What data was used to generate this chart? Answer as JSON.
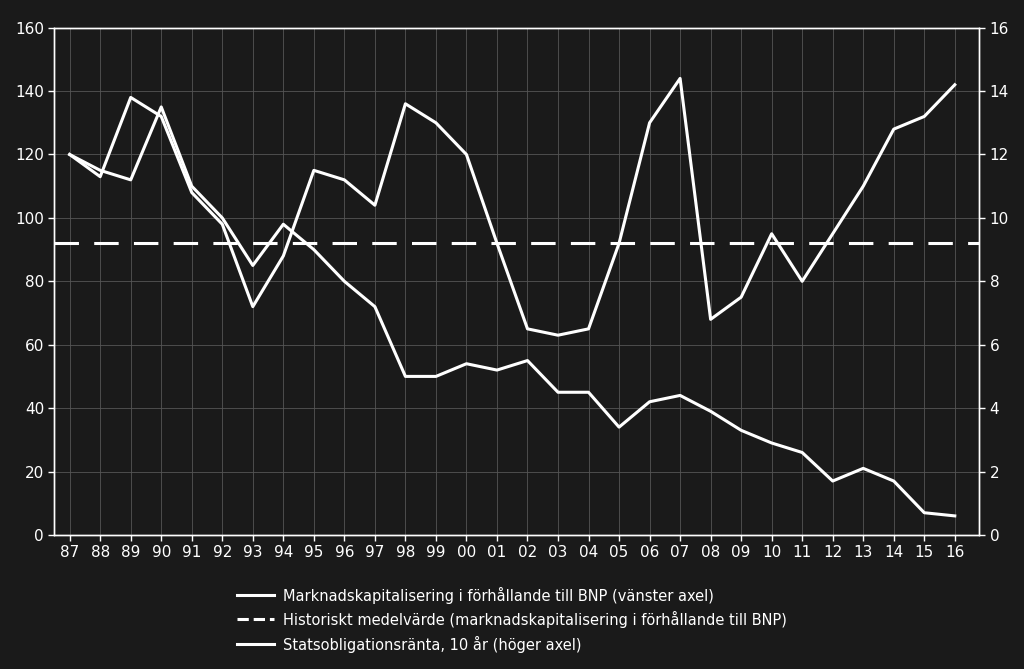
{
  "background_color": "#1a1a1a",
  "text_color": "#ffffff",
  "line_color": "#ffffff",
  "grid_color": "#555555",
  "xlim_start": 1986.5,
  "xlim_end": 2016.8,
  "ylim_left": [
    0,
    160
  ],
  "ylim_right": [
    0,
    16
  ],
  "mean_line": 92,
  "years": [
    1987,
    1988,
    1989,
    1990,
    1991,
    1992,
    1993,
    1994,
    1995,
    1996,
    1997,
    1998,
    1999,
    2000,
    2001,
    2002,
    2003,
    2004,
    2005,
    2006,
    2007,
    2008,
    2009,
    2010,
    2011,
    2012,
    2013,
    2014,
    2015,
    2016
  ],
  "market_cap_bnp": [
    120,
    113,
    138,
    132,
    108,
    98,
    72,
    88,
    115,
    112,
    104,
    136,
    130,
    120,
    92,
    65,
    63,
    65,
    92,
    130,
    144,
    68,
    75,
    95,
    80,
    95,
    110,
    128,
    132,
    142
  ],
  "bond_rate": [
    12.0,
    11.5,
    11.2,
    13.5,
    11.0,
    10.0,
    8.5,
    9.8,
    9.0,
    8.0,
    7.2,
    5.0,
    5.0,
    5.4,
    5.2,
    5.5,
    4.5,
    4.5,
    3.4,
    4.2,
    4.4,
    3.9,
    3.3,
    2.9,
    2.6,
    1.7,
    2.1,
    1.7,
    0.7,
    0.6
  ],
  "xtick_labels": [
    "87",
    "88",
    "89",
    "90",
    "91",
    "92",
    "93",
    "94",
    "95",
    "96",
    "97",
    "98",
    "99",
    "00",
    "01",
    "02",
    "03",
    "04",
    "05",
    "06",
    "07",
    "08",
    "09",
    "10",
    "11",
    "12",
    "13",
    "14",
    "15",
    "16"
  ],
  "yticks_left": [
    0,
    20,
    40,
    60,
    80,
    100,
    120,
    140,
    160
  ],
  "yticks_right": [
    0,
    2,
    4,
    6,
    8,
    10,
    12,
    14,
    16
  ],
  "legend1": "Marknadskapitalisering i förhållande till BNP (vänster axel)",
  "legend2": "Historiskt medelvärde (marknadskapitalisering i förhållande till BNP)",
  "legend3": "Statsobligationsränta, 10 år (höger axel)"
}
